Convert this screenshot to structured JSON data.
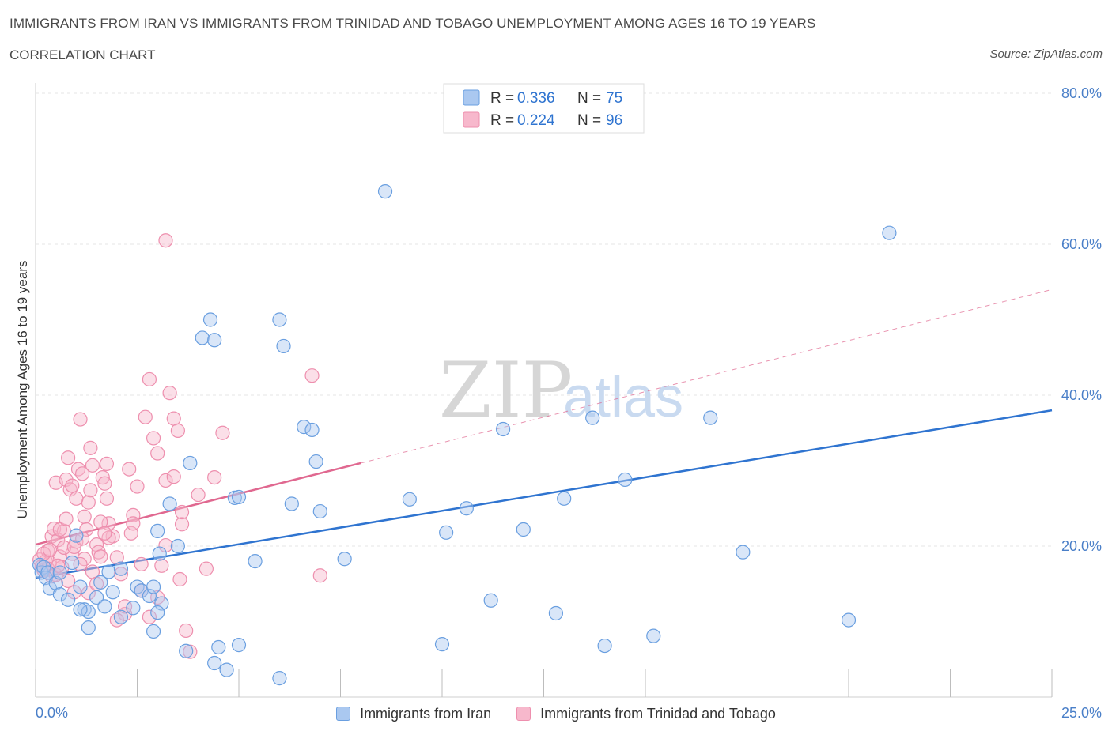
{
  "header": {
    "title": "IMMIGRANTS FROM IRAN VS IMMIGRANTS FROM TRINIDAD AND TOBAGO UNEMPLOYMENT AMONG AGES 16 TO 19 YEARS",
    "subtitle": "CORRELATION CHART",
    "source": "Source: ZipAtlas.com"
  },
  "watermark": {
    "zip": "ZIP",
    "atlas": "atlas"
  },
  "legend": {
    "r_label": "R =",
    "n_label": "N =",
    "rows": [
      {
        "r": "0.336",
        "n": "75"
      },
      {
        "r": "0.224",
        "n": "96"
      }
    ]
  },
  "colors": {
    "iran_fill": "#aac8f0",
    "iran_stroke": "#6a9fe0",
    "iran_line": "#2f74d0",
    "tt_fill": "#f7b8cc",
    "tt_stroke": "#ee8fae",
    "tt_line": "#e06890",
    "axis_text": "#4a7fc8",
    "grid": "#e4e4e4"
  },
  "chart_data": {
    "type": "scatter",
    "title": "IMMIGRANTS FROM IRAN VS IMMIGRANTS FROM TRINIDAD AND TOBAGO UNEMPLOYMENT AMONG AGES 16 TO 19 YEARS",
    "xlabel": "",
    "ylabel": "Unemployment Among Ages 16 to 19 years",
    "xlim": [
      0,
      25
    ],
    "ylim": [
      0,
      80
    ],
    "x_tick_labels": [
      "0.0%",
      "25.0%"
    ],
    "y_tick_labels": [
      "20.0%",
      "40.0%",
      "60.0%",
      "80.0%"
    ],
    "y_ticks": [
      20,
      40,
      60,
      80
    ],
    "grid": true,
    "legend_position": "top-center",
    "series": [
      {
        "name": "Immigrants from Iran",
        "R": 0.336,
        "N": 75,
        "trend": {
          "x": [
            0,
            25
          ],
          "y": [
            15.8,
            38.0
          ]
        },
        "points": [
          [
            0.1,
            17.5
          ],
          [
            0.15,
            16.5
          ],
          [
            0.2,
            17.2
          ],
          [
            0.25,
            15.8
          ],
          [
            0.3,
            16.5
          ],
          [
            0.35,
            14.4
          ],
          [
            0.5,
            15.1
          ],
          [
            0.6,
            16.5
          ],
          [
            0.9,
            17.8
          ],
          [
            1.0,
            21.4
          ],
          [
            1.1,
            14.6
          ],
          [
            1.2,
            11.6
          ],
          [
            1.3,
            11.3
          ],
          [
            1.5,
            13.2
          ],
          [
            1.6,
            15.2
          ],
          [
            1.7,
            12.0
          ],
          [
            1.9,
            13.9
          ],
          [
            2.1,
            10.6
          ],
          [
            2.5,
            14.6
          ],
          [
            2.6,
            14.1
          ],
          [
            2.8,
            13.4
          ],
          [
            2.9,
            14.6
          ],
          [
            3.0,
            22.0
          ],
          [
            3.05,
            19.0
          ],
          [
            3.1,
            12.4
          ],
          [
            3.3,
            25.6
          ],
          [
            3.5,
            20.0
          ],
          [
            3.8,
            31.0
          ],
          [
            4.1,
            47.6
          ],
          [
            4.3,
            50.0
          ],
          [
            4.4,
            47.3
          ],
          [
            4.9,
            26.4
          ],
          [
            5.0,
            26.5
          ],
          [
            5.4,
            18.0
          ],
          [
            6.0,
            50.0
          ],
          [
            6.1,
            46.5
          ],
          [
            6.3,
            25.6
          ],
          [
            6.6,
            35.8
          ],
          [
            6.8,
            35.4
          ],
          [
            6.9,
            31.2
          ],
          [
            7.0,
            24.6
          ],
          [
            7.6,
            18.3
          ],
          [
            8.6,
            67.0
          ],
          [
            9.2,
            26.2
          ],
          [
            10.1,
            21.8
          ],
          [
            10.6,
            25.0
          ],
          [
            11.5,
            35.5
          ],
          [
            12.0,
            22.2
          ],
          [
            13.0,
            26.3
          ],
          [
            13.7,
            37.0
          ],
          [
            14.5,
            28.8
          ],
          [
            16.6,
            37.0
          ],
          [
            17.4,
            19.2
          ],
          [
            20.0,
            10.2
          ],
          [
            21.0,
            61.5
          ],
          [
            4.5,
            6.6
          ],
          [
            5.0,
            6.9
          ],
          [
            4.7,
            3.6
          ],
          [
            4.4,
            4.5
          ],
          [
            3.7,
            6.1
          ],
          [
            2.9,
            8.7
          ],
          [
            1.3,
            9.2
          ],
          [
            2.4,
            11.8
          ],
          [
            3.0,
            11.2
          ],
          [
            6.0,
            2.5
          ],
          [
            10.0,
            7.0
          ],
          [
            11.2,
            12.8
          ],
          [
            12.8,
            11.1
          ],
          [
            14.0,
            6.8
          ],
          [
            15.2,
            8.1
          ],
          [
            1.8,
            16.6
          ],
          [
            2.1,
            17.0
          ],
          [
            0.6,
            13.6
          ],
          [
            1.1,
            11.6
          ],
          [
            0.8,
            12.9
          ]
        ]
      },
      {
        "name": "Immigrants from Trinidad and Tobago",
        "R": 0.224,
        "N": 96,
        "trend": {
          "x": [
            0,
            8
          ],
          "y": [
            20.2,
            31.0
          ]
        },
        "trend_extension": {
          "x": [
            8,
            25
          ],
          "y": [
            31.0,
            54.0
          ]
        },
        "points": [
          [
            0.1,
            18.2
          ],
          [
            0.15,
            17.3
          ],
          [
            0.2,
            16.8
          ],
          [
            0.25,
            18.0
          ],
          [
            0.3,
            19.4
          ],
          [
            0.35,
            17.8
          ],
          [
            0.4,
            21.3
          ],
          [
            0.45,
            22.3
          ],
          [
            0.5,
            28.4
          ],
          [
            0.55,
            20.8
          ],
          [
            0.6,
            18.6
          ],
          [
            0.65,
            17.2
          ],
          [
            0.7,
            22.0
          ],
          [
            0.75,
            28.8
          ],
          [
            0.8,
            31.7
          ],
          [
            0.85,
            27.5
          ],
          [
            0.9,
            19.0
          ],
          [
            0.95,
            13.9
          ],
          [
            1.0,
            20.6
          ],
          [
            1.05,
            30.2
          ],
          [
            1.1,
            36.8
          ],
          [
            1.15,
            29.6
          ],
          [
            1.2,
            23.9
          ],
          [
            1.25,
            22.2
          ],
          [
            1.3,
            25.8
          ],
          [
            1.35,
            33.0
          ],
          [
            1.4,
            30.7
          ],
          [
            1.5,
            20.2
          ],
          [
            1.55,
            19.2
          ],
          [
            1.6,
            18.6
          ],
          [
            1.65,
            29.1
          ],
          [
            1.7,
            28.3
          ],
          [
            1.75,
            26.3
          ],
          [
            1.8,
            23.0
          ],
          [
            1.9,
            21.3
          ],
          [
            2.0,
            18.5
          ],
          [
            2.1,
            16.3
          ],
          [
            2.2,
            11.0
          ],
          [
            2.3,
            30.2
          ],
          [
            2.35,
            21.7
          ],
          [
            2.4,
            24.1
          ],
          [
            2.5,
            27.9
          ],
          [
            2.6,
            14.1
          ],
          [
            2.7,
            37.1
          ],
          [
            2.8,
            42.1
          ],
          [
            2.9,
            34.3
          ],
          [
            3.0,
            32.3
          ],
          [
            3.1,
            17.4
          ],
          [
            3.2,
            28.7
          ],
          [
            3.3,
            40.3
          ],
          [
            3.4,
            36.9
          ],
          [
            3.5,
            35.3
          ],
          [
            3.55,
            15.6
          ],
          [
            3.6,
            22.9
          ],
          [
            3.7,
            8.8
          ],
          [
            3.8,
            6.0
          ],
          [
            4.0,
            26.8
          ],
          [
            4.2,
            17.0
          ],
          [
            4.4,
            29.1
          ],
          [
            4.6,
            35.0
          ],
          [
            3.2,
            60.5
          ],
          [
            6.8,
            42.6
          ],
          [
            0.2,
            19.0
          ],
          [
            0.3,
            17.0
          ],
          [
            0.4,
            16.0
          ],
          [
            0.6,
            22.2
          ],
          [
            0.8,
            15.4
          ],
          [
            1.0,
            26.3
          ],
          [
            1.2,
            18.3
          ],
          [
            1.4,
            16.6
          ],
          [
            1.6,
            23.2
          ],
          [
            1.8,
            21.1
          ],
          [
            2.0,
            10.2
          ],
          [
            2.2,
            12.0
          ],
          [
            2.4,
            23.0
          ],
          [
            2.6,
            17.6
          ],
          [
            2.8,
            10.6
          ],
          [
            3.0,
            13.2
          ],
          [
            3.2,
            20.1
          ],
          [
            3.4,
            29.2
          ],
          [
            3.6,
            24.5
          ],
          [
            0.5,
            16.2
          ],
          [
            0.7,
            19.8
          ],
          [
            0.9,
            28.0
          ],
          [
            1.1,
            17.6
          ],
          [
            1.3,
            13.8
          ],
          [
            1.5,
            15.0
          ],
          [
            1.7,
            21.7
          ],
          [
            0.35,
            19.5
          ],
          [
            0.55,
            17.4
          ],
          [
            0.75,
            23.6
          ],
          [
            0.95,
            19.9
          ],
          [
            1.15,
            21.0
          ],
          [
            1.35,
            27.4
          ],
          [
            7.0,
            16.1
          ],
          [
            1.75,
            30.9
          ]
        ]
      }
    ]
  },
  "bottom_legend": {
    "items": [
      {
        "label": "Immigrants from Iran"
      },
      {
        "label": "Immigrants from Trinidad and Tobago"
      }
    ]
  }
}
